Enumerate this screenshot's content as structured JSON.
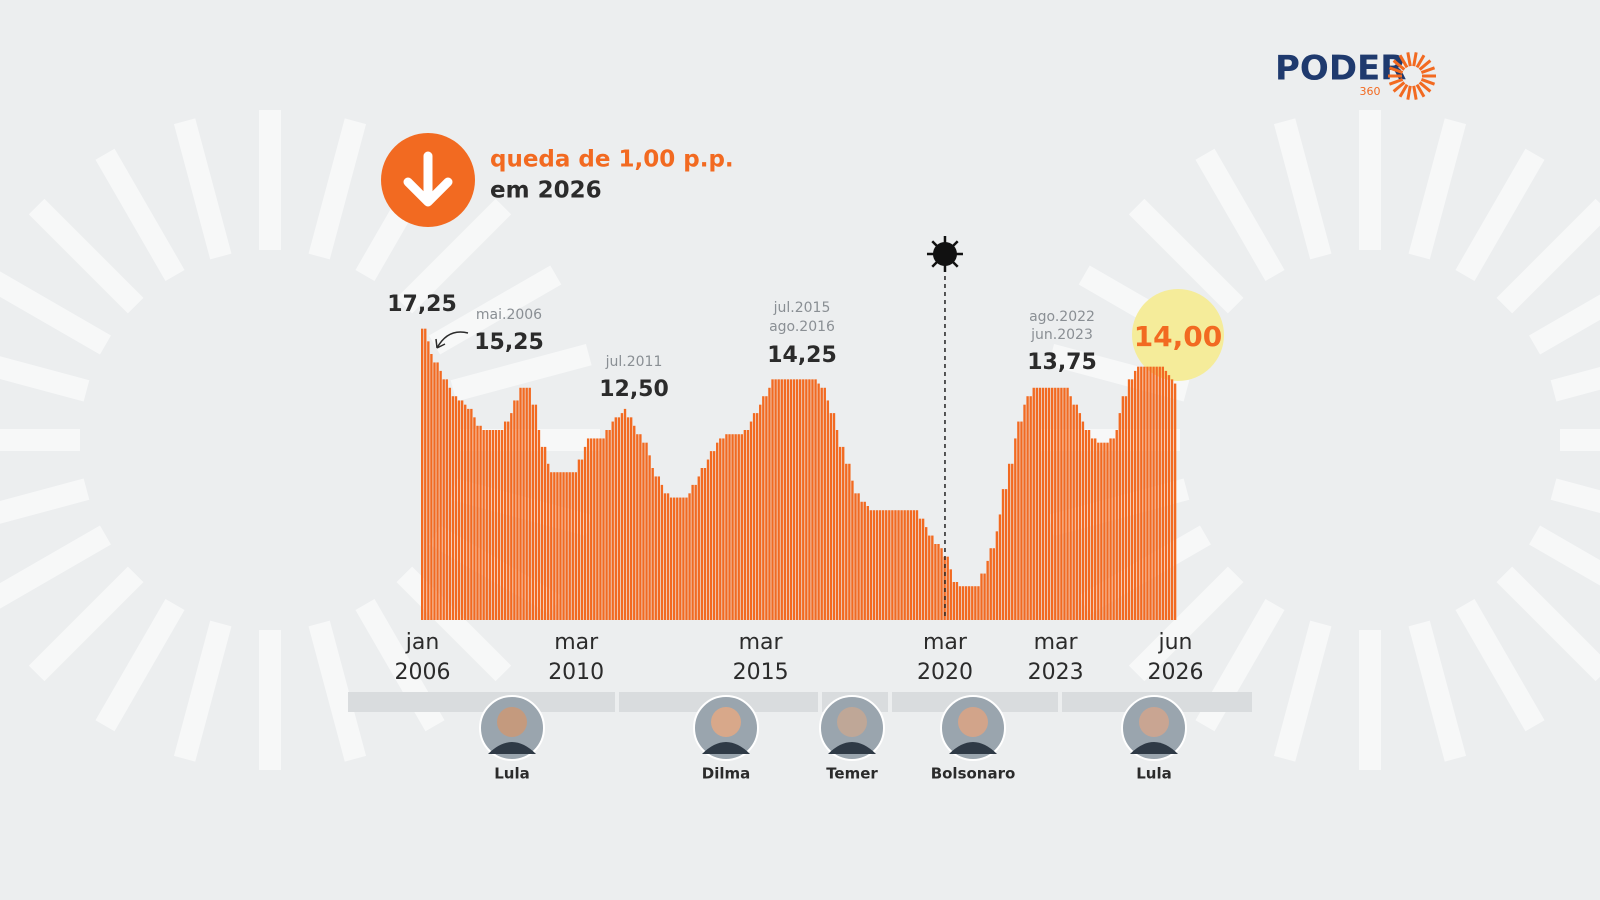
{
  "logo": {
    "name": "PODER",
    "sub": "360"
  },
  "headline": [
    "queda de 1,00 p.p.",
    "em 2026"
  ],
  "presidents": [
    "Lula",
    "Dilma",
    "Temer",
    "Bolsonaro",
    "Lula"
  ],
  "chart_data": {
    "type": "bar",
    "color": "#f26a21",
    "ylim": [
      0,
      18
    ],
    "annotations": [
      "mai.2006",
      "jul.2011",
      "jul.2015",
      "ago.2016",
      "ago.2022",
      "jun.2023"
    ],
    "categories": [
      "jan 2006",
      null,
      null,
      null,
      null,
      null,
      null,
      null,
      null,
      null,
      null,
      null,
      null,
      null,
      null,
      null,
      null,
      null,
      null,
      null,
      null,
      null,
      null,
      null,
      null,
      null,
      null,
      null,
      null,
      null,
      null,
      null,
      null,
      null,
      null,
      null,
      null,
      null,
      null,
      null,
      null,
      null,
      null,
      null,
      null,
      null,
      null,
      null,
      null,
      null,
      "mar 2010",
      null,
      null,
      null,
      null,
      null,
      null,
      null,
      null,
      null,
      null,
      null,
      null,
      null,
      null,
      null,
      null,
      null,
      null,
      null,
      null,
      null,
      null,
      null,
      null,
      null,
      null,
      null,
      null,
      null,
      null,
      null,
      null,
      null,
      null,
      null,
      null,
      null,
      null,
      null,
      null,
      null,
      null,
      null,
      null,
      null,
      null,
      null,
      null,
      null,
      null,
      null,
      null,
      null,
      null,
      null,
      null,
      null,
      null,
      null,
      "mar 2015",
      null,
      null,
      null,
      null,
      null,
      null,
      null,
      null,
      null,
      null,
      null,
      null,
      null,
      null,
      null,
      null,
      null,
      null,
      null,
      null,
      null,
      null,
      null,
      null,
      null,
      null,
      null,
      null,
      null,
      null,
      null,
      null,
      null,
      null,
      null,
      null,
      null,
      null,
      null,
      null,
      null,
      null,
      null,
      null,
      null,
      null,
      null,
      null,
      null,
      null,
      null,
      null,
      null,
      null,
      null,
      null,
      null,
      null,
      null,
      "mar 2020",
      null,
      null,
      null,
      null,
      null,
      null,
      null,
      null,
      null,
      null,
      null,
      null,
      null,
      null,
      null,
      null,
      null,
      null,
      null,
      null,
      null,
      null,
      null,
      null,
      null,
      null,
      null,
      null,
      null,
      null,
      null,
      null,
      null,
      null,
      null,
      "mar 2023",
      null,
      null,
      null,
      null,
      null,
      null,
      null,
      null,
      null,
      null,
      null,
      null,
      null,
      null,
      null,
      null,
      null,
      null,
      null,
      null,
      null,
      null,
      null,
      null,
      null,
      null,
      null,
      null,
      null,
      null,
      null,
      null,
      null,
      null,
      null,
      null,
      null,
      null,
      "jun 2026"
    ],
    "values": [
      17.25,
      17.25,
      16.5,
      15.75,
      15.25,
      15.25,
      14.75,
      14.25,
      14.25,
      13.75,
      13.25,
      13.25,
      13,
      13,
      12.75,
      12.5,
      12.5,
      12,
      11.5,
      11.5,
      11.25,
      11.25,
      11.25,
      11.25,
      11.25,
      11.25,
      11.25,
      11.75,
      11.75,
      12.25,
      13,
      13,
      13.75,
      13.75,
      13.75,
      13.75,
      12.75,
      12.75,
      11.25,
      10.25,
      10.25,
      9.25,
      8.75,
      8.75,
      8.75,
      8.75,
      8.75,
      8.75,
      8.75,
      8.75,
      8.75,
      9.5,
      9.5,
      10.25,
      10.75,
      10.75,
      10.75,
      10.75,
      10.75,
      10.75,
      11.25,
      11.25,
      11.75,
      12,
      12,
      12.25,
      12.5,
      12,
      12,
      11.5,
      11,
      11,
      10.5,
      10.5,
      9.75,
      9,
      8.5,
      8.5,
      8,
      7.5,
      7.5,
      7.25,
      7.25,
      7.25,
      7.25,
      7.25,
      7.25,
      7.5,
      8,
      8,
      8.5,
      9,
      9,
      9.5,
      10,
      10,
      10.5,
      10.75,
      10.75,
      11,
      11,
      11,
      11,
      11,
      11,
      11.25,
      11.25,
      11.75,
      12.25,
      12.25,
      12.75,
      13.25,
      13.25,
      13.75,
      14.25,
      14.25,
      14.25,
      14.25,
      14.25,
      14.25,
      14.25,
      14.25,
      14.25,
      14.25,
      14.25,
      14.25,
      14.25,
      14.25,
      14.25,
      14,
      13.75,
      13.75,
      13,
      12.25,
      12.25,
      11.25,
      10.25,
      10.25,
      9.25,
      9.25,
      8.25,
      7.5,
      7.5,
      7,
      7,
      6.75,
      6.5,
      6.5,
      6.5,
      6.5,
      6.5,
      6.5,
      6.5,
      6.5,
      6.5,
      6.5,
      6.5,
      6.5,
      6.5,
      6.5,
      6.5,
      6.5,
      6,
      6,
      5.5,
      5,
      5,
      4.5,
      4.5,
      4.25,
      3.75,
      3.75,
      3,
      2.25,
      2.25,
      2,
      2,
      2,
      2,
      2,
      2,
      2,
      2.75,
      2.75,
      3.5,
      4.25,
      4.25,
      5.25,
      6.25,
      7.75,
      7.75,
      9.25,
      9.25,
      10.75,
      11.75,
      11.75,
      12.75,
      13.25,
      13.25,
      13.75,
      13.75,
      13.75,
      13.75,
      13.75,
      13.75,
      13.75,
      13.75,
      13.75,
      13.75,
      13.75,
      13.75,
      13.25,
      12.75,
      12.75,
      12.25,
      11.75,
      11.25,
      11.25,
      10.75,
      10.75,
      10.5,
      10.5,
      10.5,
      10.5,
      10.75,
      10.75,
      11.25,
      12.25,
      13.25,
      13.25,
      14.25,
      14.25,
      14.75,
      15,
      15,
      15,
      15,
      15,
      15,
      15,
      15,
      15,
      14.75,
      14.5,
      14.25,
      14
    ],
    "value_labels": [
      "17,25",
      null,
      null,
      null,
      "15,25",
      null,
      null,
      null,
      null,
      null,
      null,
      null,
      null,
      null,
      null,
      null,
      null,
      null,
      null,
      null,
      null,
      null,
      null,
      null,
      null,
      null,
      null,
      null,
      null,
      null,
      null,
      null,
      null,
      null,
      null,
      null,
      null,
      null,
      null,
      null,
      null,
      null,
      null,
      null,
      null,
      null,
      null,
      null,
      null,
      null,
      null,
      null,
      null,
      null,
      null,
      null,
      null,
      null,
      null,
      null,
      null,
      null,
      null,
      null,
      null,
      null,
      "12,50",
      null,
      null,
      null,
      null,
      null,
      null,
      null,
      null,
      null,
      null,
      null,
      null,
      null,
      null,
      null,
      null,
      null,
      null,
      null,
      null,
      null,
      null,
      null,
      null,
      null,
      null,
      null,
      null,
      null,
      null,
      null,
      null,
      null,
      null,
      null,
      null,
      null,
      null,
      null,
      null,
      null,
      null,
      null,
      null,
      null,
      null,
      null,
      "14,25",
      null,
      null,
      null,
      null,
      null,
      null,
      null,
      null,
      null,
      null,
      null,
      null,
      null,
      null,
      null,
      null,
      null,
      null,
      null,
      null,
      null,
      null,
      null,
      null,
      null,
      null,
      null,
      null,
      null,
      null,
      null,
      null,
      null,
      null,
      null,
      null,
      null,
      null,
      null,
      null,
      null,
      null,
      null,
      null,
      null,
      null,
      null,
      null,
      null,
      null,
      null,
      null,
      null,
      null,
      null,
      null,
      null,
      null,
      null,
      null,
      null,
      null,
      null,
      null,
      null,
      null,
      null,
      null,
      null,
      null,
      null,
      null,
      null,
      null,
      null,
      null,
      null,
      null,
      null,
      null,
      null,
      null,
      null,
      null,
      "13,75",
      null,
      null,
      null,
      null,
      null,
      null,
      null,
      null,
      null,
      null,
      null,
      null,
      null,
      null,
      null,
      null,
      null,
      null,
      null,
      null,
      null,
      null,
      null,
      null,
      null,
      null,
      null,
      null,
      null,
      null,
      null,
      null,
      null,
      null,
      null,
      null,
      null,
      null,
      null,
      null,
      null,
      null,
      null,
      null,
      null,
      "14,00"
    ]
  }
}
